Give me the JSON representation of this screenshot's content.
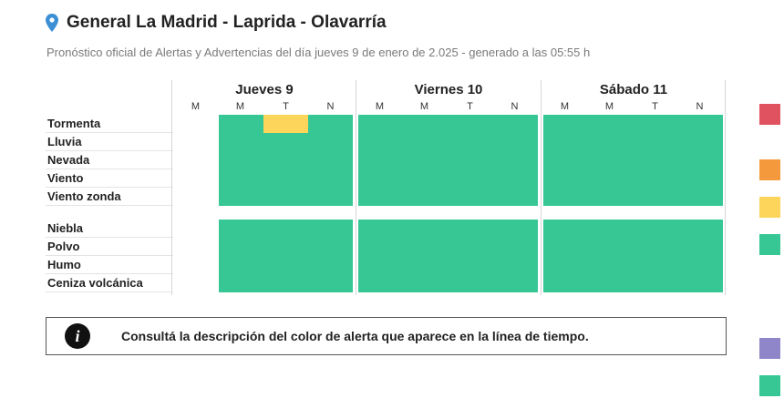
{
  "header": {
    "title": "General La Madrid - Laprida - Olavarría",
    "subtitle": "Pronóstico oficial de Alertas y Advertencias del día jueves 9 de enero de 2.025 - generado a las 05:55 h"
  },
  "timeline": {
    "days": [
      {
        "label": "Jueves 9",
        "periods": [
          "M",
          "M",
          "T",
          "N"
        ]
      },
      {
        "label": "Viernes 10",
        "periods": [
          "M",
          "M",
          "T",
          "N"
        ]
      },
      {
        "label": "Sábado 11",
        "periods": [
          "M",
          "M",
          "T",
          "N"
        ]
      }
    ],
    "group1": [
      "Tormenta",
      "Lluvia",
      "Nevada",
      "Viento",
      "Viento zonda"
    ],
    "group2": [
      "Niebla",
      "Polvo",
      "Humo",
      "Ceniza volcánica"
    ],
    "highlight": {
      "phenomenon": "Tormenta",
      "day": "Jueves 9",
      "period": "T",
      "level": "amarillo"
    }
  },
  "info": {
    "icon": "info-icon",
    "text": "Consultá la descripción del color de alerta que aparece en la línea de tiempo."
  },
  "legend_colors": {
    "rojo": "#e0525f",
    "naranja": "#f49a3c",
    "amarillo": "#fdd55b",
    "verde": "#36c794",
    "violeta": "#8f86c9",
    "verde_2": "#36c794"
  }
}
